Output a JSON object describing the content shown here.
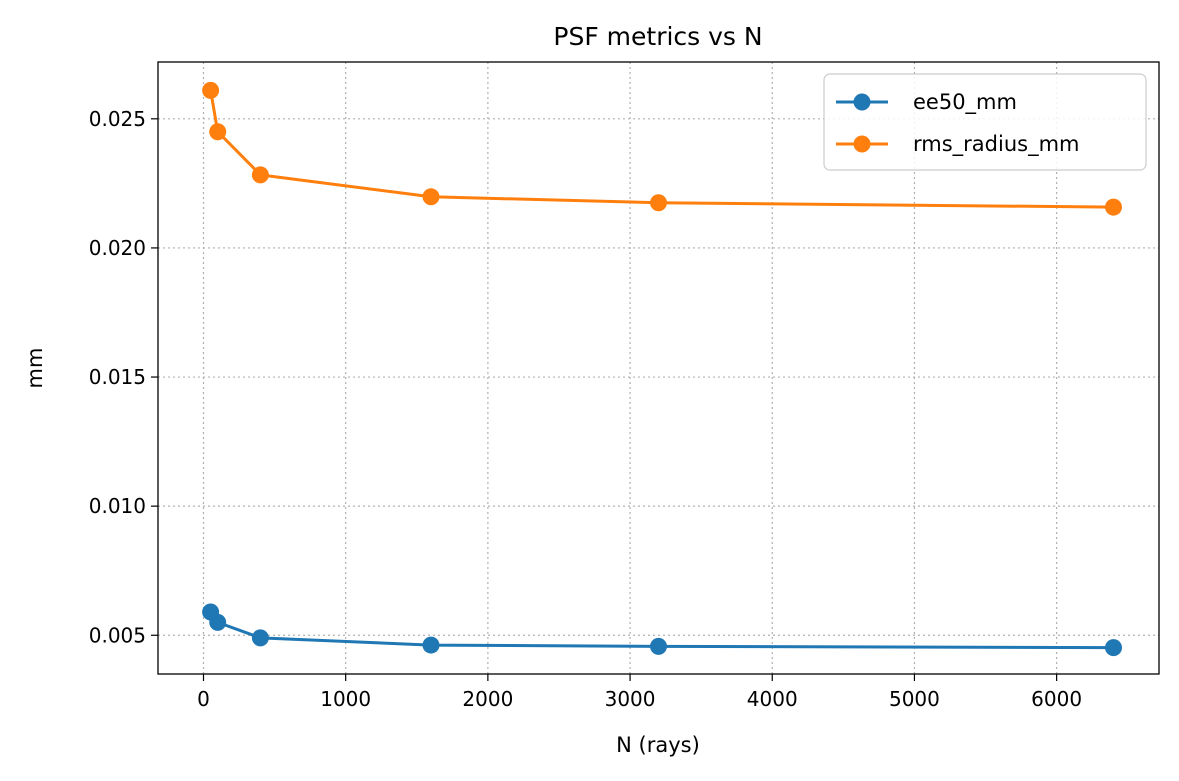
{
  "chart_data": {
    "type": "line",
    "title": "PSF metrics vs N",
    "xlabel": "N (rays)",
    "ylabel": "mm",
    "xlim": [
      -320,
      6720
    ],
    "ylim": [
      0.0035,
      0.0272
    ],
    "xticks": [
      0,
      1000,
      2000,
      3000,
      4000,
      5000,
      6000
    ],
    "xtick_labels": [
      "0",
      "1000",
      "2000",
      "3000",
      "4000",
      "5000",
      "6000"
    ],
    "yticks": [
      0.005,
      0.01,
      0.015,
      0.02,
      0.025
    ],
    "ytick_labels": [
      "0.005",
      "0.010",
      "0.015",
      "0.020",
      "0.025"
    ],
    "grid": true,
    "legend_position": "top-right",
    "x": [
      50,
      100,
      400,
      1600,
      3200,
      6400
    ],
    "series": [
      {
        "name": "ee50_mm",
        "color": "#1f77b4",
        "marker": "circle",
        "values": [
          0.0059,
          0.0055,
          0.0049,
          0.00462,
          0.00457,
          0.00452
        ]
      },
      {
        "name": "rms_radius_mm",
        "color": "#ff7f0e",
        "marker": "circle",
        "values": [
          0.0261,
          0.0245,
          0.02283,
          0.02198,
          0.02175,
          0.02158
        ]
      }
    ]
  }
}
